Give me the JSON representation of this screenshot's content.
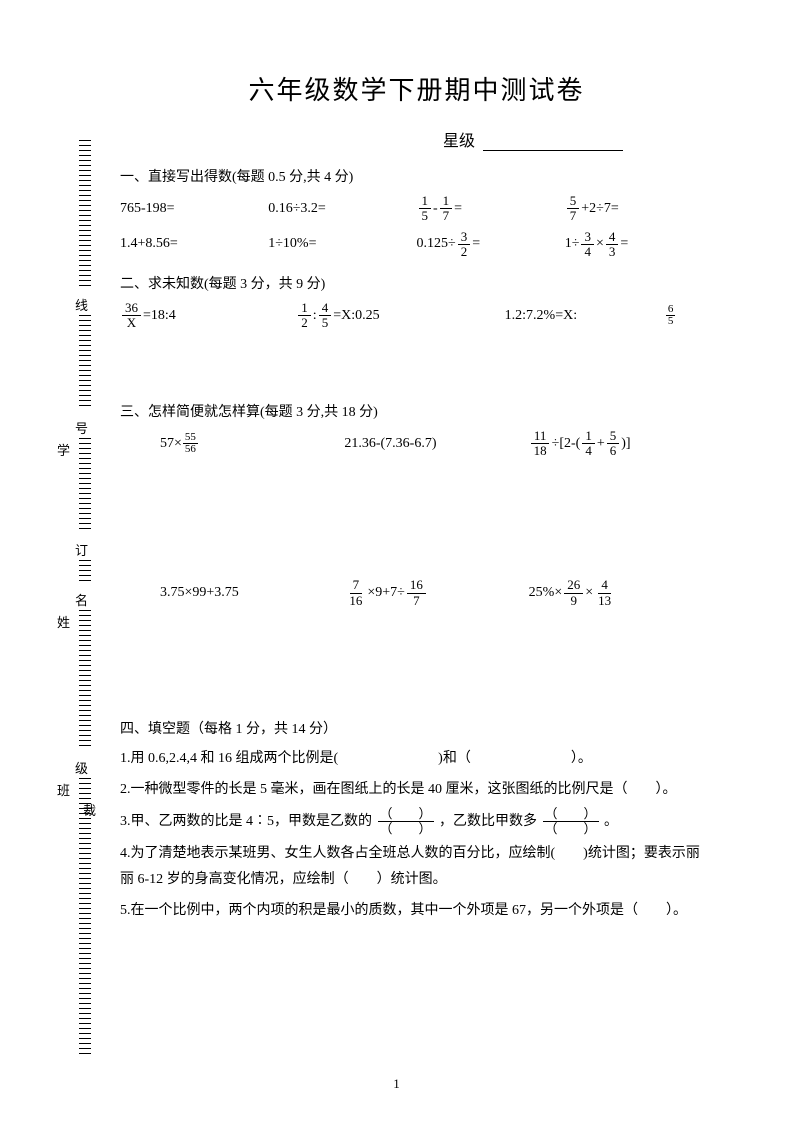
{
  "title": "六年级数学下册期中测试卷",
  "star_label": "星级",
  "page_number": "1",
  "gutter": {
    "chars": [
      "线",
      "号",
      "学",
      "订",
      "名",
      "姓",
      "级",
      "班",
      "裁"
    ]
  },
  "s1": {
    "head": "一、直接写出得数(每题 0.5 分,共 4 分)",
    "r1c1": "765-198=",
    "r1c2": "0.16÷3.2=",
    "r1c3_a": "1",
    "r1c3_b": "5",
    "r1c3_c": "1",
    "r1c3_d": "7",
    "r1c4_a": "5",
    "r1c4_b": "7",
    "r1c4_tail": "+2÷7=",
    "r2c1": "1.4+8.56=",
    "r2c2": "1÷10%=",
    "r2c3_head": "0.125÷",
    "r2c3_a": "3",
    "r2c3_b": "2",
    "r2c4_head": "1÷",
    "r2c4_a": "3",
    "r2c4_b": "4",
    "r2c4_c": "4",
    "r2c4_d": "3"
  },
  "s2": {
    "head": "二、求未知数(每题 3 分，共 9 分)",
    "e1_a": "36",
    "e1_b": "X",
    "e1_tail": "=18:4",
    "e2_a": "1",
    "e2_b": "2",
    "e2_c": "4",
    "e2_d": "5",
    "e2_tail": "=X:0.25",
    "e3_head": "1.2:7.2%=X:",
    "e3_a": "6",
    "e3_b": "5"
  },
  "s3": {
    "head": "三、怎样简便就怎样算(每题 3 分,共 18 分)",
    "r1c1_head": "57×",
    "r1c1_a": "55",
    "r1c1_b": "56",
    "r1c2": "21.36-(7.36-6.7)",
    "r1c3_a": "11",
    "r1c3_b": "18",
    "r1c3_mid1": "÷[2-(",
    "r1c3_c": "1",
    "r1c3_d": "4",
    "r1c3_e": "5",
    "r1c3_f": "6",
    "r1c3_mid2": ")]",
    "r2c1": "3.75×99+3.75",
    "r2c2_a": "7",
    "r2c2_b": "16",
    "r2c2_mid": "×9+7÷",
    "r2c2_c": "16",
    "r2c2_d": "7",
    "r2c3_head": "25%×",
    "r2c3_a": "26",
    "r2c3_b": "9",
    "r2c3_mid": " ×",
    "r2c3_c": "4",
    "r2c3_d": "13"
  },
  "s4": {
    "head": "四、填空题（每格 1 分，共 14 分）",
    "q1": "1.用 0.6,2.4,4 和 16 组成两个比例是(",
    "q1_mid": ")和（",
    "q1_end": "）。",
    "q2": "2.一种微型零件的长是 5 毫米，画在图纸上的长是 40 厘米，这张图纸的比例尺是（　　）。",
    "q3_a": "3.甲、乙两数的比是 4∶5，甲数是乙数的",
    "q3_b": "，乙数比甲数多",
    "q3_c": "。",
    "paren_top": "（　　）",
    "paren_bot": "（　　）",
    "q4": "4.为了清楚地表示某班男、女生人数各占全班总人数的百分比，应绘制(　　)统计图；要表示丽丽 6-12 岁的身高变化情况，应绘制（　　）统计图。",
    "q5": "5.在一个比例中，两个内项的积是最小的质数，其中一个外项是 67，另一个外项是（　　）。"
  }
}
